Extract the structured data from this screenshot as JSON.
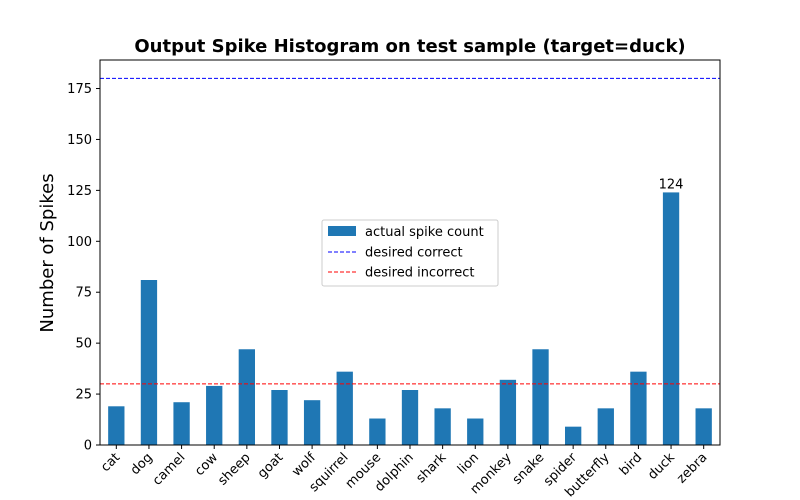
{
  "chart_data": {
    "type": "bar",
    "title": "Output Spike Histogram on test sample (target=duck)",
    "xlabel": "",
    "ylabel": "Number of Spikes",
    "categories": [
      "cat",
      "dog",
      "camel",
      "cow",
      "sheep",
      "goat",
      "wolf",
      "squirrel",
      "mouse",
      "dolphin",
      "shark",
      "lion",
      "monkey",
      "snake",
      "spider",
      "butterfly",
      "bird",
      "duck",
      "zebra"
    ],
    "series": [
      {
        "name": "actual spike count",
        "values": [
          19,
          81,
          21,
          29,
          47,
          27,
          22,
          36,
          13,
          27,
          18,
          13,
          32,
          47,
          9,
          18,
          36,
          124,
          18
        ],
        "color": "#1f77b4"
      }
    ],
    "hlines": [
      {
        "name": "desired correct",
        "y": 180,
        "color": "#0000ff",
        "style": "dashed"
      },
      {
        "name": "desired incorrect",
        "y": 30,
        "color": "#ff0000",
        "style": "dashed"
      }
    ],
    "annotations": [
      {
        "category": "duck",
        "text": "124"
      }
    ],
    "ylim": [
      0,
      189
    ],
    "yticks": [
      0,
      25,
      50,
      75,
      100,
      125,
      150,
      175
    ],
    "legend_placement": "center",
    "grid": false
  }
}
